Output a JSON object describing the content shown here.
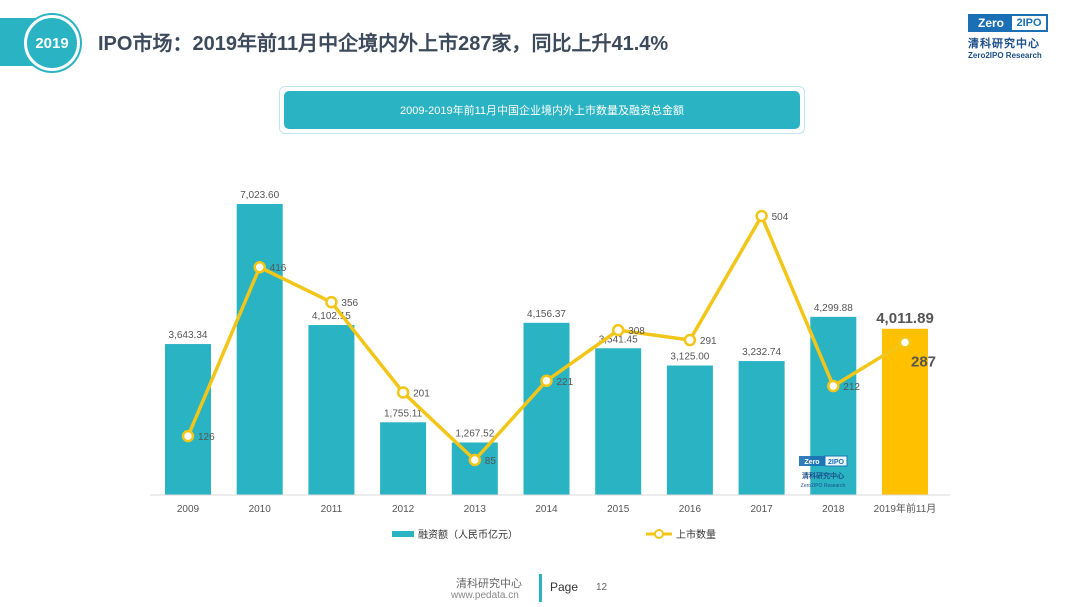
{
  "header": {
    "year_badge": "2019",
    "title": "IPO市场：2019年前11月中企境内外上市287家，同比上升41.4%"
  },
  "logo": {
    "left_text": "Zero",
    "right_text": "2IPO",
    "cn_text": "清科研究中心",
    "en_text": "Zero2IPO Research"
  },
  "footer": {
    "org": "清科研究中心",
    "url": "www.pedata.cn",
    "page_label": "Page",
    "page_number": "12"
  },
  "colors": {
    "bar": "#2ab3c2",
    "bar_highlight": "#ffc000",
    "line": "#f2c618",
    "marker_fill": "#ffffff"
  },
  "chart_data": {
    "type": "bar",
    "title": "2009-2019年前11月中国企业境内外上市数量及融资总金额",
    "categories": [
      "2009",
      "2010",
      "2011",
      "2012",
      "2013",
      "2014",
      "2015",
      "2016",
      "2017",
      "2018",
      "2019年前11月"
    ],
    "series": [
      {
        "name": "融资额（人民币亿元）",
        "type": "bar",
        "values": [
          3643.34,
          7023.6,
          4102.15,
          1755.11,
          1267.52,
          4156.37,
          3541.45,
          3125.0,
          3232.74,
          4299.88,
          4011.89
        ],
        "labels": [
          "3,643.34",
          "7,023.60",
          "4,102.15",
          "1,755.11",
          "1,267.52",
          "4,156.37",
          "3,541.45",
          "3,125.00",
          "3,232.74",
          "4,299.88",
          "4,011.89"
        ]
      },
      {
        "name": "上市数量",
        "type": "line",
        "values": [
          126,
          416,
          356,
          201,
          85,
          221,
          308,
          291,
          504,
          212,
          287
        ],
        "labels": [
          "126",
          "416",
          "356",
          "201",
          "85",
          "221",
          "308",
          "291",
          "504",
          "212",
          "287"
        ]
      }
    ],
    "y_bar_range": [
      0,
      7000
    ],
    "y_line_range": [
      0,
      540
    ],
    "gridlines": false,
    "legend_position": "bottom",
    "highlight_last": true
  }
}
